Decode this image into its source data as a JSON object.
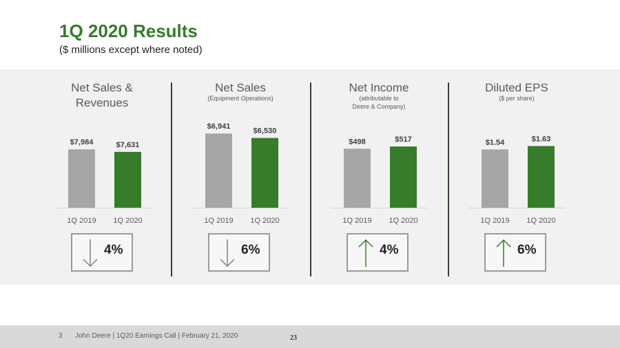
{
  "header": {
    "title": "1Q 2020 Results",
    "subtitle": "($ millions except where noted)"
  },
  "colors": {
    "accent": "#367C2B",
    "prior": "#A6A6A6",
    "arrow_down": "#808080",
    "arrow_up": "#367C2B"
  },
  "chart_data": [
    {
      "type": "bar",
      "title": "Net Sales & Revenues",
      "categories": [
        "1Q 2019",
        "1Q 2020"
      ],
      "values": [
        7984,
        7631
      ],
      "value_labels": [
        "$7,984",
        "$7,631"
      ],
      "change": "4%",
      "direction": "down"
    },
    {
      "type": "bar",
      "title": "Net Sales",
      "note": "(Equipment Operations)",
      "categories": [
        "1Q 2019",
        "1Q 2020"
      ],
      "values": [
        6941,
        6530
      ],
      "value_labels": [
        "$6,941",
        "$6,530"
      ],
      "change": "6%",
      "direction": "down"
    },
    {
      "type": "bar",
      "title": "Net Income",
      "note": "(attributable to\nDeere & Company)",
      "categories": [
        "1Q 2019",
        "1Q 2020"
      ],
      "values": [
        498,
        517
      ],
      "value_labels": [
        "$498",
        "$517"
      ],
      "change": "4%",
      "direction": "up"
    },
    {
      "type": "bar",
      "title": "Diluted EPS",
      "note": "($ per share)",
      "categories": [
        "1Q 2019",
        "1Q 2020"
      ],
      "values": [
        1.54,
        1.63
      ],
      "value_labels": [
        "$1.54",
        "$1.63"
      ],
      "change": "6%",
      "direction": "up"
    }
  ],
  "footer": {
    "slide_number": "3",
    "text": "John Deere | 1Q20 Earnings Call | February 21, 2020",
    "page": "23"
  }
}
